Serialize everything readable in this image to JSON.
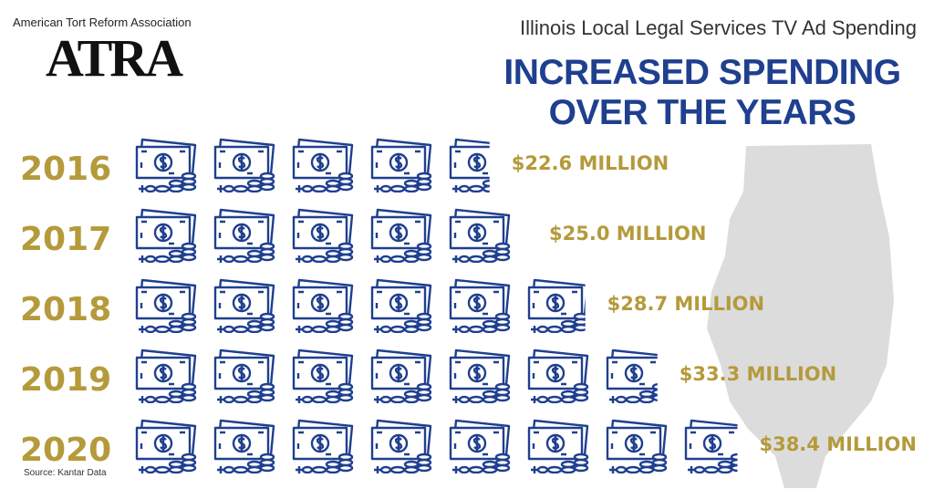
{
  "organization": "American Tort Reform Association",
  "logo": "ATRA",
  "supertitle": "Illinois Local Legal Services TV Ad Spending",
  "source": "Source: Kantar Data",
  "chart_data": {
    "type": "pictogram",
    "title": "INCREASED SPENDING OVER THE YEARS",
    "categories": [
      "2016",
      "2017",
      "2018",
      "2019",
      "2020"
    ],
    "values": [
      22.6,
      25.0,
      28.7,
      33.3,
      38.4
    ],
    "value_labels": [
      "$22.6 MILLION",
      "$25.0 MILLION",
      "$28.7 MILLION",
      "$33.3 MILLION",
      "$38.4 MILLION"
    ],
    "color": "#1f3f8f",
    "label_color": "#b59a3b"
  }
}
